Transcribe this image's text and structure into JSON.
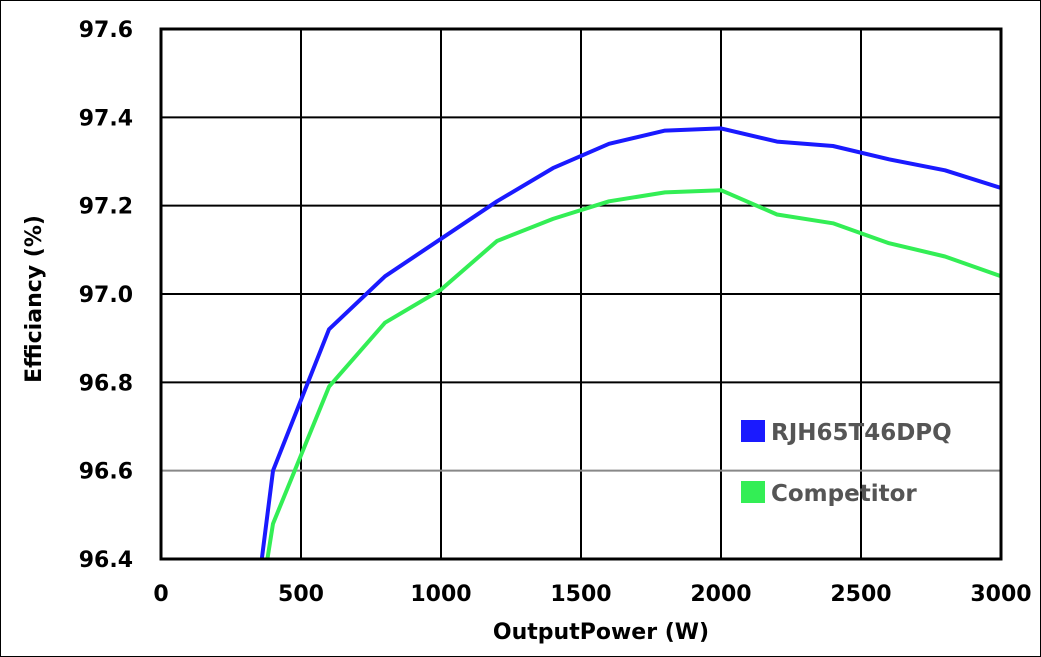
{
  "chart_data": {
    "type": "line",
    "title": "",
    "xlabel": "OutputPower (W)",
    "ylabel": "Efficiancy (%)",
    "xlim": [
      0,
      3000
    ],
    "ylim": [
      96.4,
      97.6
    ],
    "x_ticks": [
      "0",
      "500",
      "1000",
      "1500",
      "2000",
      "2500",
      "3000"
    ],
    "y_ticks": [
      "96.4",
      "96.6",
      "96.8",
      "97.0",
      "97.2",
      "97.4",
      "97.6"
    ],
    "grid": true,
    "legend_position": "bottom-right",
    "series": [
      {
        "name": "RJH65T46DPQ",
        "color": "#1a1aff",
        "points": [
          [
            360,
            96.4
          ],
          [
            400,
            96.6
          ],
          [
            500,
            96.76
          ],
          [
            600,
            96.92
          ],
          [
            800,
            97.04
          ],
          [
            1000,
            97.125
          ],
          [
            1200,
            97.21
          ],
          [
            1400,
            97.285
          ],
          [
            1600,
            97.34
          ],
          [
            1800,
            97.37
          ],
          [
            2000,
            97.375
          ],
          [
            2200,
            97.345
          ],
          [
            2400,
            97.335
          ],
          [
            2600,
            97.305
          ],
          [
            2800,
            97.28
          ],
          [
            3000,
            97.24
          ]
        ]
      },
      {
        "name": "Competitor",
        "color": "#33ee55",
        "points": [
          [
            380,
            96.4
          ],
          [
            400,
            96.48
          ],
          [
            500,
            96.635
          ],
          [
            600,
            96.79
          ],
          [
            800,
            96.935
          ],
          [
            1000,
            97.01
          ],
          [
            1200,
            97.12
          ],
          [
            1400,
            97.17
          ],
          [
            1600,
            97.21
          ],
          [
            1800,
            97.23
          ],
          [
            2000,
            97.235
          ],
          [
            2200,
            97.18
          ],
          [
            2400,
            97.16
          ],
          [
            2600,
            97.115
          ],
          [
            2800,
            97.085
          ],
          [
            3000,
            97.04
          ]
        ]
      }
    ]
  }
}
